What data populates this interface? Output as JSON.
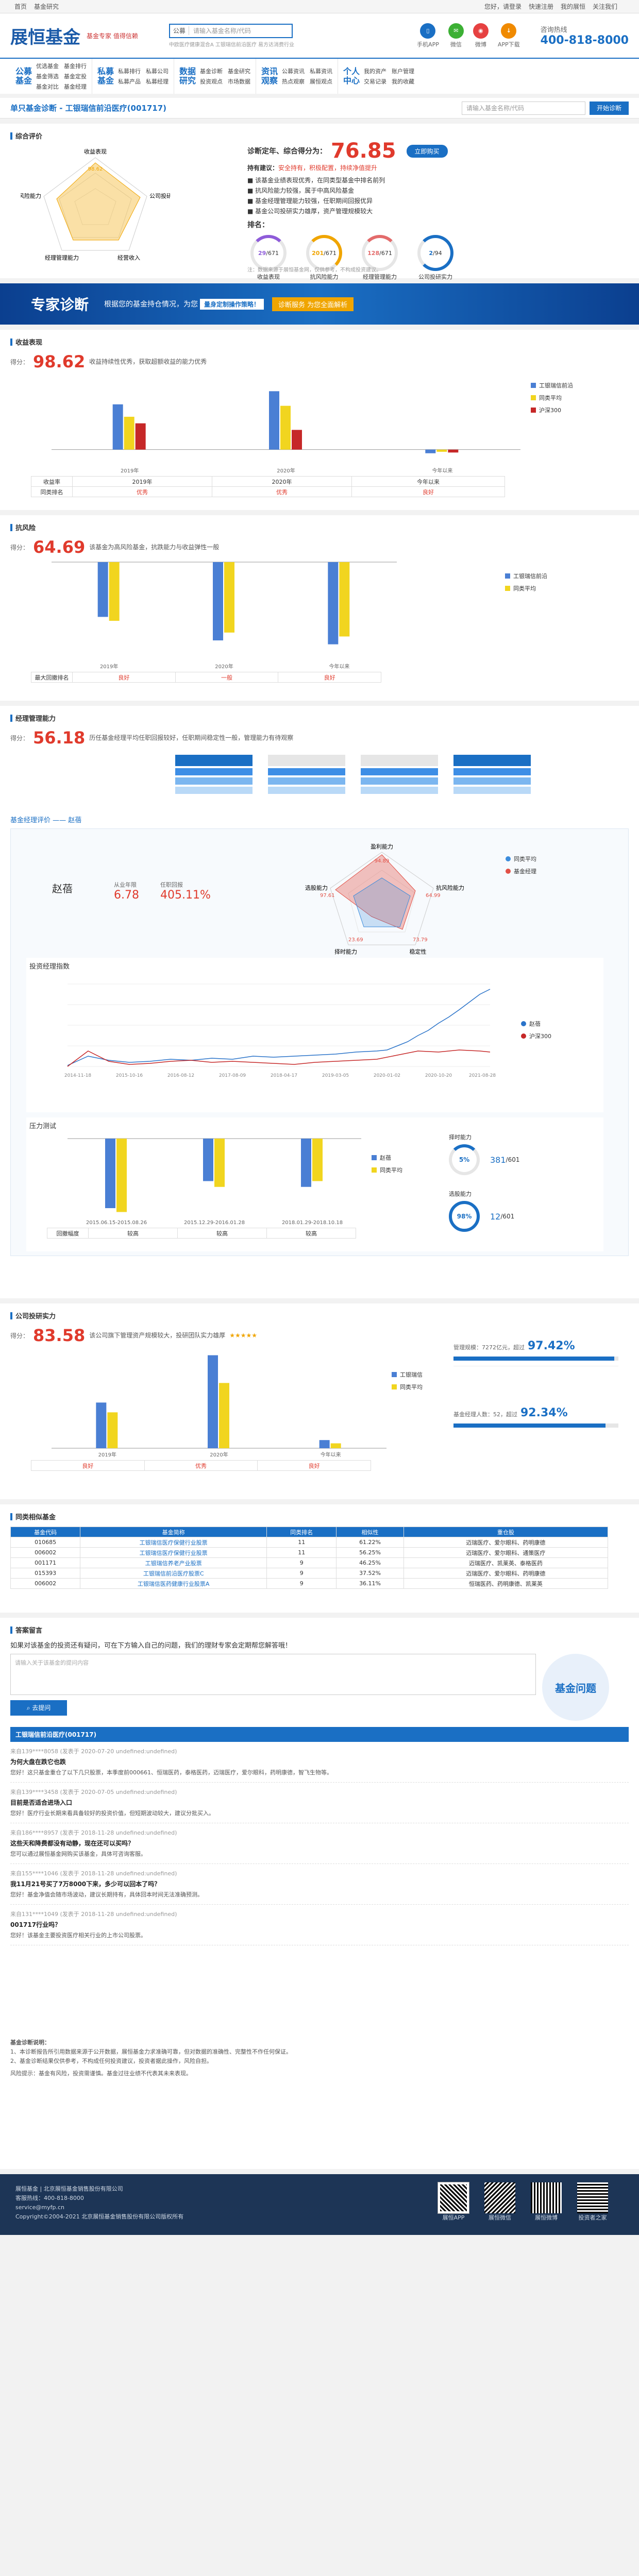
{
  "topbar": {
    "links": [
      "首页",
      "基金研究"
    ],
    "right": [
      "您好，请登录",
      "快速注册",
      "我的展恒",
      "关注我们"
    ]
  },
  "header": {
    "logo": "展恒基金",
    "slogan": "基金专家 值得信赖",
    "search_cat": "公募",
    "search_ph": "请输入基金名称/代码",
    "icons": [
      "手机APP",
      "微信",
      "微博",
      "APP下载"
    ],
    "hotline_label": "咨询热线",
    "hotline": "400-818-8000",
    "hot_links": "中欧医疗健康混合A  工银瑞信前沿医疗  易方达消费行业"
  },
  "nav": [
    {
      "title": "公募基金",
      "items": [
        "优选基金",
        "基金排行",
        "基金筛选",
        "基金定投",
        "基金对比",
        "基金经理"
      ]
    },
    {
      "title": "私募基金",
      "items": [
        "私募排行",
        "私募公司",
        "私募产品",
        "私募经理"
      ]
    },
    {
      "title": "数据研究",
      "items": [
        "基金诊断",
        "基金研究",
        "投资观点",
        "市场数据"
      ]
    },
    {
      "title": "资讯观察",
      "items": [
        "公募资讯",
        "私募资讯",
        "热点观察",
        "展恒观点"
      ]
    },
    {
      "title": "个人中心",
      "items": [
        "我的资产",
        "账户管理",
        "交易记录",
        "我的收藏"
      ]
    }
  ],
  "title": {
    "text": "单只基金诊断 - 工银瑞信前沿医疗(001717)",
    "input_ph": "请输入基金名称/代码",
    "btn": "开始诊断"
  },
  "overall": {
    "section": "综合评价",
    "radar_labels": [
      "收益表现",
      "公司投研实力",
      "抗风险能力",
      "经理管理能力",
      "经营收入"
    ],
    "radar_value": "98.62",
    "label": "诊断定年、综合得分为：",
    "score": "76.85",
    "btn": "立即购买",
    "advice_label": "持有建议：",
    "advice": "安全持有，积极配置，持续净值提升",
    "bullets": [
      "该基金业绩表现优秀，在同类型基金中排名前列",
      "抗风险能力较强，属于中高风险基金",
      "基金经理管理能力较强，任职期间回报优异",
      "基金公司投研实力雄厚，资产管理规模较大"
    ],
    "rank_label": "排名：",
    "ranks": [
      {
        "v": "29",
        "t": "/671",
        "l": "收益表现"
      },
      {
        "v": "201",
        "t": "/671",
        "l": "抗风险能力"
      },
      {
        "v": "128",
        "t": "/671",
        "l": "经理管理能力"
      },
      {
        "v": "2",
        "t": "/94",
        "l": "公司投研实力"
      }
    ],
    "note": "注：数据来源于展恒基金网，仅供参考，不构成投资建议。"
  },
  "banner": {
    "t1": "专家诊断",
    "t2": "根据您的基金持仓情况，为您",
    "t3": "量身定制操作策略！",
    "btn": "诊断服务 为您全面解析"
  },
  "income": {
    "section": "收益表现",
    "score_label": "得分：",
    "score": "98.62",
    "desc": "收益持续性优秀，获取超额收益的能力优秀",
    "legend": [
      "工银瑞信前沿",
      "同类平均",
      "沪深300"
    ],
    "groups": [
      "2019年",
      "2020年",
      "今年以来"
    ],
    "row1_label": "收益率",
    "row2_label": "同类排名",
    "rows": [
      "优秀",
      "优秀",
      "良好"
    ]
  },
  "risk": {
    "section": "抗风险",
    "score_label": "得分：",
    "score": "64.69",
    "desc": "该基金为高风险基金，抗跌能力与收益弹性一般",
    "legend": [
      "工银瑞信前沿",
      "同类平均"
    ],
    "groups": [
      "2019年",
      "2020年",
      "今年以来"
    ],
    "row_label": "最大回撤排名",
    "rows": [
      "良好",
      "一般",
      "良好"
    ]
  },
  "mgr": {
    "section": "经理管理能力",
    "score_label": "得分：",
    "score": "56.18",
    "desc": "历任基金经理平均任职回报较好，任职期间稳定性一般，管理能力有待观察",
    "mgr_name_title": "基金经理评价 —— 赵蓓",
    "name": "赵蓓",
    "k1_label": "从业年限",
    "k1": "6.78",
    "k2_label": "任职回报",
    "k2": "405.11%",
    "radar_labels": [
      "盈利能力",
      "抗风险能力",
      "稳定性",
      "择时能力",
      "选股能力"
    ],
    "radar_vals": [
      "94.89",
      "64.99",
      "73.79",
      "23.69",
      "97.61"
    ],
    "radar_legend": [
      "基金经理",
      "同类平均"
    ],
    "line_title": "投资经理指数",
    "line_legend": [
      "赵蓓",
      "沪深300"
    ],
    "line_x": [
      "2014-11-18",
      "2015-10-16",
      "2016-08-12",
      "2017-08-09",
      "2018-04-17",
      "2019-03-05",
      "2020-01-02",
      "2020-10-20",
      "2021-08-28"
    ],
    "stress_title": "压力测试",
    "stress_groups": [
      "2015.06.15-2015.08.26",
      "2015.12.29-2016.01.28",
      "2018.01.29-2018.10.18"
    ],
    "stress_rows": [
      "较高",
      "较高",
      "较高"
    ],
    "stress_row_label": "回撤幅度",
    "timing": [
      {
        "t": "择时能力",
        "p": "5%",
        "n": "381",
        "d": "/601"
      },
      {
        "t": "选股能力",
        "p": "98%",
        "n": "12",
        "d": "/601"
      }
    ]
  },
  "company": {
    "section": "公司投研实力",
    "score_label": "得分：",
    "score": "83.58",
    "desc": "该公司旗下管理资产规模较大，投研团队实力雄厚",
    "legend": [
      "工银瑞信",
      "同类平均"
    ],
    "groups": [
      "2019年",
      "2020年",
      "今年以来"
    ],
    "rows": [
      "良好",
      "优秀",
      "良好"
    ],
    "g1_label": "管理规模：7272亿元，超过",
    "g1": "97.42%",
    "g2_label": "基金经理人数：52，超过",
    "g2": "92.34%"
  },
  "peers": {
    "section": "同类相似基金",
    "cols": [
      "基金代码",
      "基金简称",
      "同类排名",
      "相似性",
      "重仓股"
    ],
    "rows": [
      [
        "010685",
        "工银瑞信医疗保健行业股票",
        "11",
        "61.22%",
        "迈瑞医疗、爱尔眼科、药明康德"
      ],
      [
        "006002",
        "工银瑞信医疗保健行业股票",
        "11",
        "56.25%",
        "迈瑞医疗、爱尔眼科、通策医疗"
      ],
      [
        "001171",
        "工银瑞信养老产业股票",
        "9",
        "46.25%",
        "迈瑞医疗、凯莱英、泰格医药"
      ],
      [
        "015393",
        "工银瑞信前沿医疗股票C",
        "9",
        "37.52%",
        "迈瑞医疗、爱尔眼科、药明康德"
      ],
      [
        "006002",
        "工银瑞信医药健康行业股票A",
        "9",
        "36.11%",
        "恒瑞医药、药明康德、凯莱英"
      ]
    ]
  },
  "qa": {
    "section": "答案留言",
    "intro": "如果对该基金的投资还有疑问，可在下方输入自己的问题，我们的理财专家会定期帮您解答哦！",
    "ta_ph": "请输入关于该基金的提问内容",
    "btn": "去提问",
    "badge": "基金问题",
    "list_title": "工银瑞信前沿医疗(001717)",
    "items": [
      {
        "meta": "来自139****8058 (发表于 2020-07-20 undefined:undefined)",
        "q": "为何大盘在跌它也跌",
        "a": "您好！这只基金重仓了以下几只股票，本季度前000661、恒瑞医药，泰格医药，迈瑞医疗，爱尔眼科，药明康德，智飞生物等。"
      },
      {
        "meta": "来自139****3458 (发表于 2020-07-05 undefined:undefined)",
        "q": "目前是否适合进场入口",
        "a": "您好！医疗行业长期来看具备较好的投资价值，但短期波动较大，建议分批买入。"
      },
      {
        "meta": "来自186****8957 (发表于 2018-11-28 undefined:undefined)",
        "q": "这些天和降费都没有动静，现在还可以买吗？",
        "a": "您可以通过展恒基金网购买该基金，具体可咨询客服。"
      },
      {
        "meta": "来自155****1046 (发表于 2018-11-28 undefined:undefined)",
        "q": "我11月21号买了7万8000下来，多少可以回本了吗？",
        "a": "您好！基金净值会随市场波动，建议长期持有，具体回本时间无法准确预测。"
      },
      {
        "meta": "来自131****1049 (发表于 2018-11-28 undefined:undefined)",
        "q": "001717行业吗？",
        "a": "您好！该基金主要投资医疗相关行业的上市公司股票。"
      }
    ]
  },
  "disclaimer": {
    "title": "基金诊断说明：",
    "lines": [
      "1、本诊断报告所引用数据来源于公开数据，展恒基金力求准确可靠，但对数据的准确性、完整性不作任何保证。",
      "2、基金诊断结果仅供参考，不构成任何投资建议，投资者据此操作，风险自担。"
    ],
    "risk": "风险提示：基金有风险，投资需谨慎。基金过往业绩不代表其未来表现。"
  },
  "footer": {
    "l1": "展恒基金  |  北京展恒基金销售股份有限公司",
    "phone_label": "客服热线：",
    "phone": "400-818-8000",
    "email": "service@myfp.cn",
    "copy": "Copyright©2004-2021 北京展恒基金销售股份有限公司版权所有",
    "qr": [
      "展恒APP",
      "展恒微信",
      "展恒微博",
      "投资者之家"
    ]
  },
  "colors": {
    "blue": "#1a6fc4",
    "yellow": "#f1d51f",
    "red": "#c62828",
    "accent": "#e03a2c"
  },
  "chart_data": [
    {
      "type": "bar",
      "title": "收益表现",
      "categories": [
        "2019年",
        "2020年",
        "今年以来"
      ],
      "series": [
        {
          "name": "工银瑞信前沿",
          "values": [
            62,
            80,
            -5
          ]
        },
        {
          "name": "同类平均",
          "values": [
            45,
            60,
            -3
          ]
        },
        {
          "name": "沪深300",
          "values": [
            36,
            27,
            -4
          ]
        }
      ]
    },
    {
      "type": "bar",
      "title": "抗风险",
      "categories": [
        "2019年",
        "2020年",
        "今年以来"
      ],
      "series": [
        {
          "name": "工银瑞信前沿",
          "values": [
            -14,
            -20,
            -21
          ]
        },
        {
          "name": "同类平均",
          "values": [
            -15,
            -18,
            -19
          ]
        }
      ]
    },
    {
      "type": "bar",
      "title": "压力测试",
      "categories": [
        "2015.06.15-2015.08.26",
        "2015.12.29-2016.01.28",
        "2018.01.29-2018.10.18"
      ],
      "series": [
        {
          "name": "赵蓓",
          "values": [
            -36,
            -22,
            -25
          ]
        },
        {
          "name": "同类平均",
          "values": [
            -38,
            -25,
            -22
          ]
        }
      ]
    },
    {
      "type": "bar",
      "title": "公司投研实力",
      "categories": [
        "2019年",
        "2020年",
        "今年以来"
      ],
      "series": [
        {
          "name": "工银瑞信",
          "values": [
            28,
            57,
            5
          ]
        },
        {
          "name": "同类平均",
          "values": [
            22,
            40,
            3
          ]
        }
      ]
    }
  ]
}
